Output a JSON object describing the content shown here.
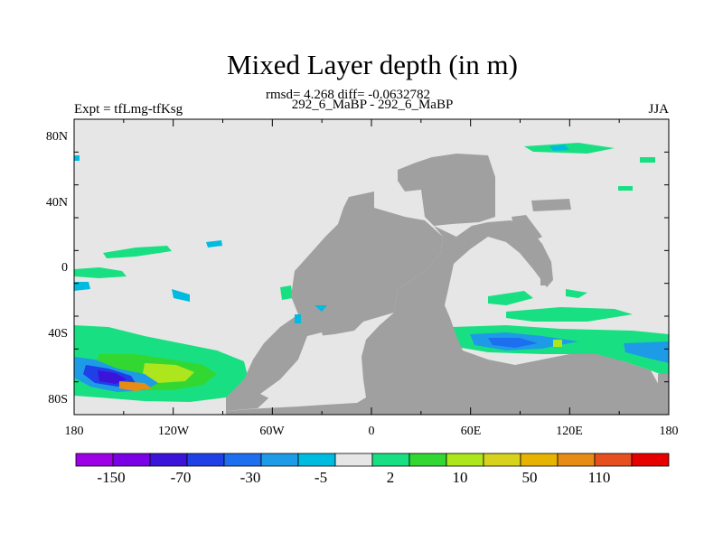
{
  "header": {
    "title": "Mixed Layer depth (in m)",
    "stats": "rmsd= 4.268 diff= -0.0632782",
    "left_label": "Expt = tfLmg-tfKsg",
    "center_label": "292_6_MaBP - 292_6_MaBP",
    "right_label": "JJA"
  },
  "map": {
    "ocean_color": "#e6e6e6",
    "land_color": "#a0a0a0",
    "lon_ticks": [
      "180",
      "120W",
      "60W",
      "0",
      "60E",
      "120E",
      "180"
    ],
    "lat_ticks": [
      "80N",
      "40N",
      "0",
      "40S",
      "80S"
    ]
  },
  "colorbar": {
    "colors": [
      "#9d00e6",
      "#7a00e6",
      "#3c13d9",
      "#1e40e6",
      "#1e6ef0",
      "#1e9be6",
      "#00bbe0",
      "#e6e6e6",
      "#18e082",
      "#32d732",
      "#aee61e",
      "#d7d21e",
      "#e6b400",
      "#e68c14",
      "#e6501e",
      "#e60000"
    ],
    "labels": [
      "-150",
      "-70",
      "-30",
      "-5",
      "2",
      "10",
      "50",
      "110"
    ]
  }
}
